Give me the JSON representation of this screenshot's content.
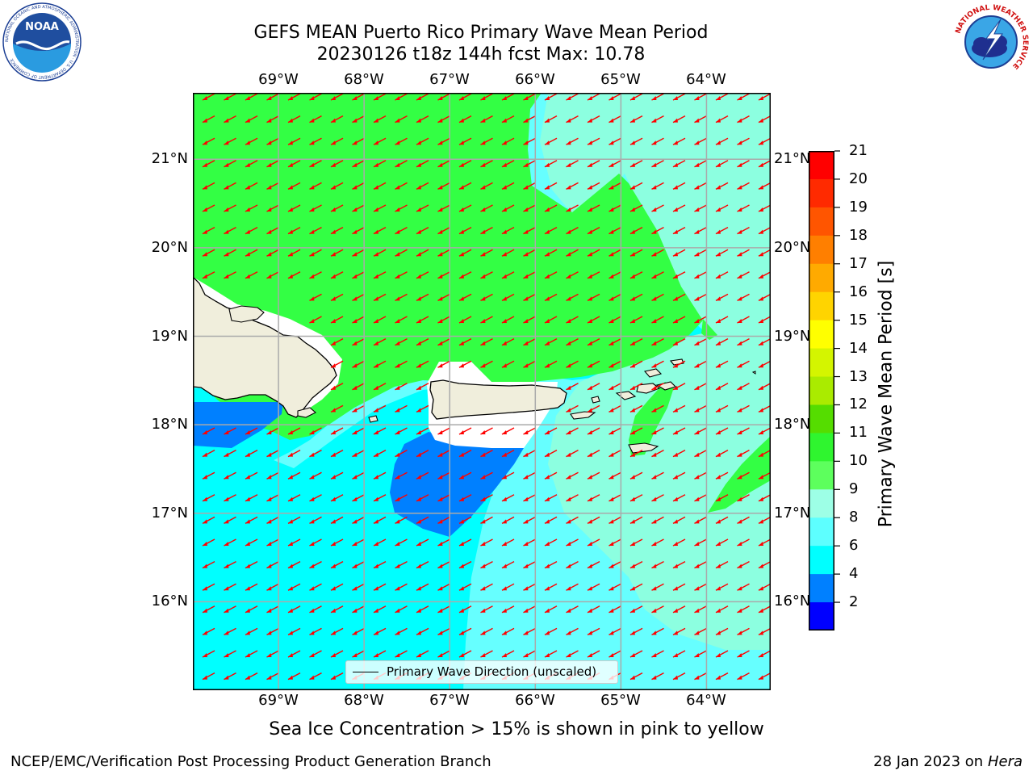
{
  "title_line1": "GEFS MEAN Puerto Rico Primary Wave Mean Period",
  "title_line2": "20230126 t18z 144h fcst   Max: 10.78",
  "lon_labels": [
    "69°W",
    "68°W",
    "67°W",
    "66°W",
    "65°W",
    "64°W"
  ],
  "lat_labels": [
    "21°N",
    "20°N",
    "19°N",
    "18°N",
    "17°N",
    "16°N"
  ],
  "lon_values": [
    -69,
    -68,
    -67,
    -66,
    -65,
    -64
  ],
  "lat_values": [
    21,
    20,
    19,
    18,
    17,
    16
  ],
  "map_extent": {
    "lon_min": -70,
    "lon_max": -63.25,
    "lat_min": 15,
    "lat_max": 21.75
  },
  "legend_label": "Primary Wave Direction (unscaled)",
  "colorbar": {
    "label": "Primary Wave Mean Period [s]",
    "ticks": [
      "21",
      "20",
      "19",
      "18",
      "17",
      "16",
      "15",
      "14",
      "13",
      "12",
      "11",
      "10",
      "9",
      "8",
      "6",
      "4",
      "2"
    ],
    "colors": [
      "#ff0000",
      "#ff2a00",
      "#ff5500",
      "#ff7f00",
      "#ffaa00",
      "#ffd400",
      "#ffff00",
      "#d4f500",
      "#aaeb00",
      "#55dd00",
      "#2ff52f",
      "#5dff5d",
      "#9dffe6",
      "#5dffff",
      "#00ffff",
      "#0080ff",
      "#0000ff"
    ]
  },
  "field_colors": {
    "green": "#33ff44",
    "aqua_light": "#8cffe0",
    "aqua": "#66ffff",
    "cyan": "#00ffff",
    "blue": "#0080ff",
    "land": "#f0eedc",
    "arrow": "#ff0000"
  },
  "caption": "Sea Ice Concentration > 15% is shown in pink to yellow",
  "footer_left": "NCEP/EMC/Verification Post Processing Product Generation Branch",
  "footer_right_prefix": "28 Jan 2023 on ",
  "footer_right_host": "Hera",
  "logos": {
    "noaa": {
      "text": "NOAA",
      "ring_text": "NATIONAL OCEANIC AND ATMOSPHERIC ADMINISTRATION · U.S. DEPARTMENT OF COMMERCE"
    },
    "nws": {
      "ring_text": "NATIONAL WEATHER SERVICE"
    }
  }
}
